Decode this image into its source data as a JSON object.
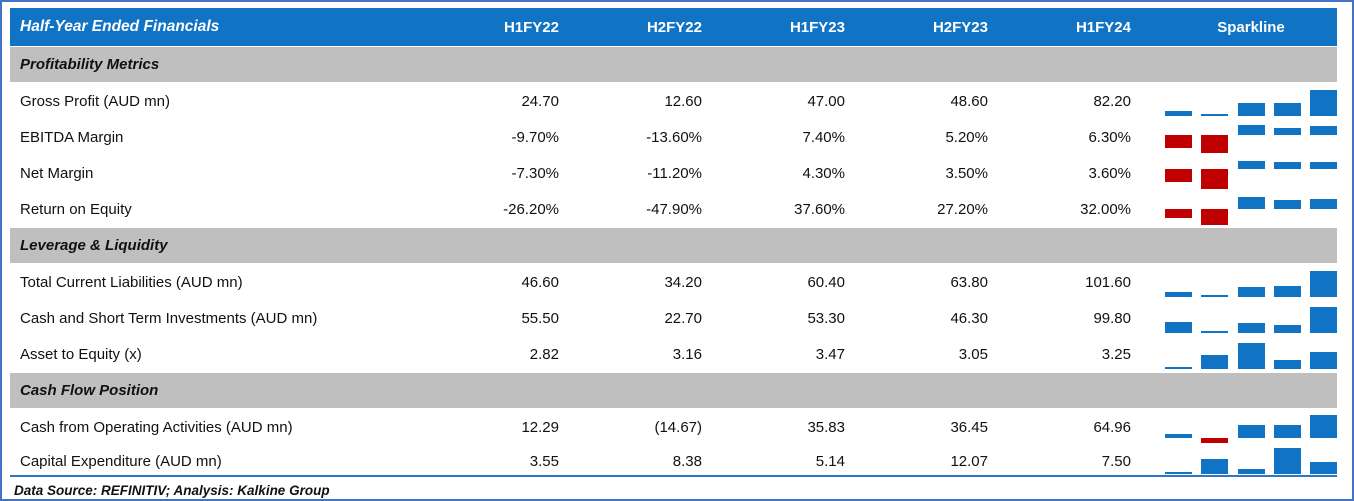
{
  "header": {
    "title": "Half-Year Ended Financials",
    "columns": [
      "H1FY22",
      "H2FY22",
      "H1FY23",
      "H2FY23",
      "H1FY24"
    ],
    "sparkline_label": "Sparkline"
  },
  "sections": [
    {
      "title": "Profitability Metrics",
      "rows": [
        {
          "label": "Gross Profit (AUD mn)",
          "values": [
            "24.70",
            "12.60",
            "47.00",
            "48.60",
            "82.20"
          ],
          "spark": [
            24.7,
            12.6,
            47.0,
            48.6,
            82.2
          ]
        },
        {
          "label": "EBITDA Margin",
          "values": [
            "-9.70%",
            "-13.60%",
            "7.40%",
            "5.20%",
            "6.30%"
          ],
          "spark": [
            -9.7,
            -13.6,
            7.4,
            5.2,
            6.3
          ]
        },
        {
          "label": "Net Margin",
          "values": [
            "-7.30%",
            "-11.20%",
            "4.30%",
            "3.50%",
            "3.60%"
          ],
          "spark": [
            -7.3,
            -11.2,
            4.3,
            3.5,
            3.6
          ]
        },
        {
          "label": "Return on Equity",
          "values": [
            "-26.20%",
            "-47.90%",
            "37.60%",
            "27.20%",
            "32.00%"
          ],
          "spark": [
            -26.2,
            -47.9,
            37.6,
            27.2,
            32.0
          ]
        }
      ]
    },
    {
      "title": "Leverage & Liquidity",
      "rows": [
        {
          "label": "Total Current Liabilities (AUD mn)",
          "values": [
            "46.60",
            "34.20",
            "60.40",
            "63.80",
            "101.60"
          ],
          "spark": [
            46.6,
            34.2,
            60.4,
            63.8,
            101.6
          ]
        },
        {
          "label": "Cash and Short Term Investments (AUD mn)",
          "values": [
            "55.50",
            "22.70",
            "53.30",
            "46.30",
            "99.80"
          ],
          "spark": [
            55.5,
            22.7,
            53.3,
            46.3,
            99.8
          ]
        },
        {
          "label": "Asset to Equity (x)",
          "values": [
            "2.82",
            "3.16",
            "3.47",
            "3.05",
            "3.25"
          ],
          "spark": [
            2.82,
            3.16,
            3.47,
            3.05,
            3.25
          ]
        }
      ]
    },
    {
      "title": "Cash Flow Position",
      "rows": [
        {
          "label": "Cash from Operating Activities (AUD mn)",
          "values": [
            "12.29",
            "(14.67)",
            "35.83",
            "36.45",
            "64.96"
          ],
          "spark": [
            12.29,
            -14.67,
            35.83,
            36.45,
            64.96
          ]
        },
        {
          "label": "Capital Expenditure (AUD mn)",
          "values": [
            "3.55",
            "8.38",
            "5.14",
            "12.07",
            "7.50"
          ],
          "spark": [
            3.55,
            8.38,
            5.14,
            12.07,
            7.5
          ]
        }
      ]
    }
  ],
  "footer": {
    "text": "Data Source: REFINITIV; Analysis: Kalkine Group"
  },
  "colors": {
    "header_bg": "#1173C4",
    "header_text": "#FFFFFF",
    "section_bg": "#BFBFBF",
    "positive_bar": "#1173C4",
    "negative_bar": "#C00000",
    "outer_border": "#4472C4",
    "separator_line": "#2E75C6"
  },
  "chart_data": {
    "type": "table",
    "title": "Half-Year Ended Financials",
    "columns": [
      "Metric",
      "H1FY22",
      "H2FY22",
      "H1FY23",
      "H2FY23",
      "H1FY24",
      "Sparkline"
    ],
    "x": [
      "H1FY22",
      "H2FY22",
      "H1FY23",
      "H2FY23",
      "H1FY24"
    ],
    "series": [
      {
        "name": "Gross Profit (AUD mn)",
        "values": [
          24.7,
          12.6,
          47.0,
          48.6,
          82.2
        ]
      },
      {
        "name": "EBITDA Margin (%)",
        "values": [
          -9.7,
          -13.6,
          7.4,
          5.2,
          6.3
        ]
      },
      {
        "name": "Net Margin (%)",
        "values": [
          -7.3,
          -11.2,
          4.3,
          3.5,
          3.6
        ]
      },
      {
        "name": "Return on Equity (%)",
        "values": [
          -26.2,
          -47.9,
          37.6,
          27.2,
          32.0
        ]
      },
      {
        "name": "Total Current Liabilities (AUD mn)",
        "values": [
          46.6,
          34.2,
          60.4,
          63.8,
          101.6
        ]
      },
      {
        "name": "Cash and Short Term Investments (AUD mn)",
        "values": [
          55.5,
          22.7,
          53.3,
          46.3,
          99.8
        ]
      },
      {
        "name": "Asset to Equity (x)",
        "values": [
          2.82,
          3.16,
          3.47,
          3.05,
          3.25
        ]
      },
      {
        "name": "Cash from Operating Activities (AUD mn)",
        "values": [
          12.29,
          -14.67,
          35.83,
          36.45,
          64.96
        ]
      },
      {
        "name": "Capital Expenditure (AUD mn)",
        "values": [
          3.55,
          8.38,
          5.14,
          12.07,
          7.5
        ]
      }
    ],
    "sparkline_style": "win-loss column, blue positive, red negative, axis min = row minimum"
  }
}
